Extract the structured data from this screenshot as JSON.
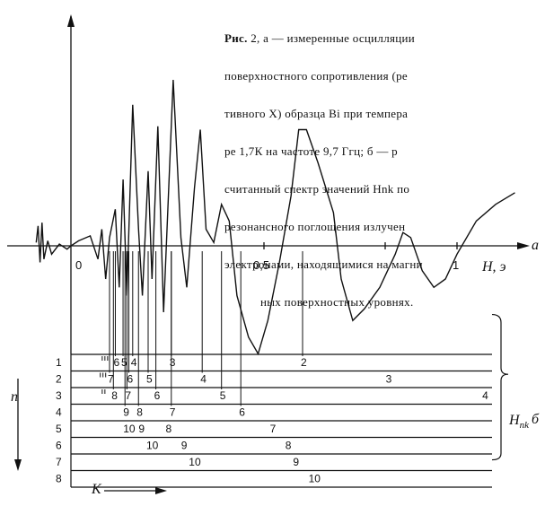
{
  "caption": {
    "label": "Рис.",
    "lines": [
      " 2, а — измеренные осцилляции",
      "поверхностного сопротивления (ре",
      "тивного X) образца Bi при темпера",
      "ре 1,7К на частоте 9,7 Ггц; б — р",
      "считанный спектр значений Hnk по",
      "резонансного поглощения излучен",
      "электронами, находящимися на магни",
      "ных поверхностных уровнях."
    ]
  },
  "panel_a": {
    "label": "а",
    "x_axis_label": "H, э",
    "tick_labels": [
      "0",
      "0,5",
      "1"
    ],
    "curve": {
      "x_range": [
        -0.09,
        1.15
      ],
      "points": [
        [
          -0.09,
          0.02
        ],
        [
          -0.085,
          0.12
        ],
        [
          -0.08,
          -0.1
        ],
        [
          -0.075,
          0.14
        ],
        [
          -0.07,
          -0.08
        ],
        [
          -0.06,
          0.03
        ],
        [
          -0.05,
          -0.05
        ],
        [
          -0.03,
          0.01
        ],
        [
          -0.01,
          -0.02
        ],
        [
          0.0,
          0.0
        ],
        [
          0.02,
          0.03
        ],
        [
          0.05,
          0.06
        ],
        [
          0.07,
          -0.08
        ],
        [
          0.08,
          0.1
        ],
        [
          0.09,
          -0.2
        ],
        [
          0.1,
          0.05
        ],
        [
          0.115,
          0.22
        ],
        [
          0.125,
          -0.25
        ],
        [
          0.135,
          0.4
        ],
        [
          0.145,
          -0.3
        ],
        [
          0.16,
          0.85
        ],
        [
          0.175,
          0.1
        ],
        [
          0.185,
          -0.3
        ],
        [
          0.2,
          0.45
        ],
        [
          0.21,
          -0.2
        ],
        [
          0.225,
          0.72
        ],
        [
          0.24,
          -0.4
        ],
        [
          0.265,
          1.0
        ],
        [
          0.285,
          0.05
        ],
        [
          0.3,
          -0.25
        ],
        [
          0.32,
          0.35
        ],
        [
          0.335,
          0.7
        ],
        [
          0.35,
          0.1
        ],
        [
          0.37,
          0.02
        ],
        [
          0.39,
          0.25
        ],
        [
          0.41,
          0.15
        ],
        [
          0.43,
          -0.3
        ],
        [
          0.46,
          -0.55
        ],
        [
          0.485,
          -0.65
        ],
        [
          0.51,
          -0.45
        ],
        [
          0.54,
          -0.1
        ],
        [
          0.57,
          0.3
        ],
        [
          0.59,
          0.7
        ],
        [
          0.61,
          0.7
        ],
        [
          0.64,
          0.5
        ],
        [
          0.68,
          0.2
        ],
        [
          0.7,
          -0.2
        ],
        [
          0.73,
          -0.45
        ],
        [
          0.76,
          -0.38
        ],
        [
          0.8,
          -0.25
        ],
        [
          0.84,
          -0.05
        ],
        [
          0.86,
          0.08
        ],
        [
          0.88,
          0.05
        ],
        [
          0.91,
          -0.15
        ],
        [
          0.94,
          -0.25
        ],
        [
          0.97,
          -0.2
        ],
        [
          1.0,
          -0.05
        ],
        [
          1.05,
          0.15
        ],
        [
          1.1,
          0.25
        ],
        [
          1.15,
          0.32
        ]
      ]
    }
  },
  "panel_b": {
    "label": "б",
    "rows_label": "n",
    "cols_label": "K",
    "brace_label": "H",
    "brace_label_sub": "nk",
    "row_numbers": [
      "1",
      "2",
      "3",
      "4",
      "5",
      "6",
      "7",
      "8"
    ],
    "entries": [
      {
        "row": 1,
        "k": 6,
        "label": "6",
        "h": 0.115
      },
      {
        "row": 1,
        "k": 5,
        "label": "5",
        "h": 0.135
      },
      {
        "row": 1,
        "k": 4,
        "label": "4",
        "h": 0.16
      },
      {
        "row": 1,
        "k": 3,
        "label": "3",
        "h": 0.26
      },
      {
        "row": 1,
        "k": 2,
        "label": "2",
        "h": 0.6
      },
      {
        "row": 2,
        "k": 7,
        "label": "7",
        "h": 0.1
      },
      {
        "row": 2,
        "k": 6,
        "label": "6",
        "h": 0.15
      },
      {
        "row": 2,
        "k": 5,
        "label": "5",
        "h": 0.2
      },
      {
        "row": 2,
        "k": 4,
        "label": "4",
        "h": 0.34
      },
      {
        "row": 2,
        "k": 3,
        "label": "3",
        "h": 0.82
      },
      {
        "row": 3,
        "k": 8,
        "label": "8",
        "h": 0.11
      },
      {
        "row": 3,
        "k": 7,
        "label": "7",
        "h": 0.145
      },
      {
        "row": 3,
        "k": 6,
        "label": "6",
        "h": 0.22
      },
      {
        "row": 3,
        "k": 5,
        "label": "5",
        "h": 0.39
      },
      {
        "row": 3,
        "k": 4,
        "label": "4",
        "h": 1.07
      },
      {
        "row": 4,
        "k": 9,
        "label": "9",
        "h": 0.14
      },
      {
        "row": 4,
        "k": 8,
        "label": "8",
        "h": 0.175
      },
      {
        "row": 4,
        "k": 7,
        "label": "7",
        "h": 0.26
      },
      {
        "row": 4,
        "k": 6,
        "label": "6",
        "h": 0.44
      },
      {
        "row": 5,
        "k": 10,
        "label": "10",
        "h": 0.14
      },
      {
        "row": 5,
        "k": 9,
        "label": "9",
        "h": 0.18
      },
      {
        "row": 5,
        "k": 8,
        "label": "8",
        "h": 0.25
      },
      {
        "row": 5,
        "k": 7,
        "label": "7",
        "h": 0.52
      },
      {
        "row": 6,
        "k": 10,
        "label": "10",
        "h": 0.2
      },
      {
        "row": 6,
        "k": 9,
        "label": "9",
        "h": 0.29
      },
      {
        "row": 6,
        "k": 8,
        "label": "8",
        "h": 0.56
      },
      {
        "row": 7,
        "k": 10,
        "label": "10",
        "h": 0.31
      },
      {
        "row": 7,
        "k": 9,
        "label": "9",
        "h": 0.58
      },
      {
        "row": 8,
        "k": 10,
        "label": "10",
        "h": 0.62
      }
    ],
    "tick_marks": [
      {
        "row": 1,
        "h": 0.095,
        "count": 3
      },
      {
        "row": 2,
        "h": 0.09,
        "count": 3
      },
      {
        "row": 3,
        "h": 0.095,
        "count": 2
      }
    ]
  }
}
